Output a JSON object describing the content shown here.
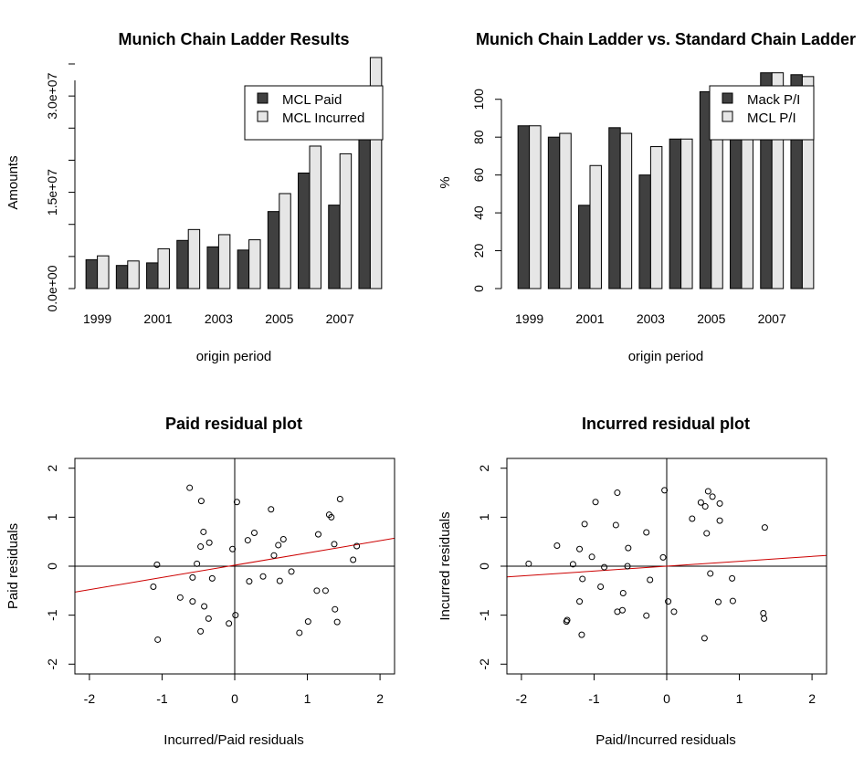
{
  "chart_data": [
    {
      "type": "bar",
      "title": "Munich Chain Ladder Results",
      "xlabel": "origin period",
      "ylabel": "Amounts",
      "categories": [
        "1999",
        "2000",
        "2001",
        "2002",
        "2003",
        "2004",
        "2005",
        "2006",
        "2007",
        "2008"
      ],
      "category_labels_shown": [
        "1999",
        "2001",
        "2003",
        "2005",
        "2007"
      ],
      "y_ticks": [
        0,
        15000000,
        30000000
      ],
      "y_tick_labels": [
        "0.0e+00",
        "1.5e+07",
        "3.0e+07"
      ],
      "ylim": [
        0,
        35000000
      ],
      "series": [
        {
          "name": "MCL Paid",
          "color": "#404040",
          "values": [
            4500000,
            3600000,
            4000000,
            7500000,
            6500000,
            6000000,
            12000000,
            18000000,
            13000000,
            31000000
          ]
        },
        {
          "name": "MCL Incurred",
          "color": "#e6e6e6",
          "values": [
            5100000,
            4300000,
            6200000,
            9200000,
            8400000,
            7600000,
            14800000,
            22200000,
            21000000,
            36000000
          ]
        }
      ],
      "legend_position": "top-right"
    },
    {
      "type": "bar",
      "title": "Munich Chain Ladder vs. Standard Chain Ladder",
      "xlabel": "origin period",
      "ylabel": "%",
      "categories": [
        "1999",
        "2000",
        "2001",
        "2002",
        "2003",
        "2004",
        "2005",
        "2006",
        "2007",
        "2008"
      ],
      "category_labels_shown": [
        "1999",
        "2001",
        "2003",
        "2005",
        "2007"
      ],
      "y_ticks": [
        0,
        20,
        40,
        60,
        80,
        100
      ],
      "ylim": [
        0,
        110
      ],
      "series": [
        {
          "name": "Mack P/I",
          "color": "#404040",
          "values": [
            86,
            80,
            44,
            85,
            60,
            79,
            104,
            107,
            114,
            113
          ]
        },
        {
          "name": "MCL P/I",
          "color": "#e6e6e6",
          "values": [
            86,
            82,
            65,
            82,
            75,
            79,
            104,
            107,
            114,
            112
          ]
        }
      ],
      "legend_position": "top-right"
    },
    {
      "type": "scatter",
      "title": "Paid residual plot",
      "xlabel": "Incurred/Paid residuals",
      "ylabel": "Paid residuals",
      "xlim": [
        -2.2,
        2.2
      ],
      "ylim": [
        -2.2,
        2.2
      ],
      "x_ticks": [
        -2,
        -1,
        0,
        1,
        2
      ],
      "y_ticks": [
        -2,
        -1,
        0,
        1,
        2
      ],
      "points": [
        [
          -0.62,
          1.6
        ],
        [
          -0.46,
          1.33
        ],
        [
          0.03,
          1.31
        ],
        [
          0.5,
          1.16
        ],
        [
          1.45,
          1.37
        ],
        [
          1.3,
          1.05
        ],
        [
          1.33,
          1.0
        ],
        [
          -0.43,
          0.7
        ],
        [
          0.27,
          0.68
        ],
        [
          0.18,
          0.53
        ],
        [
          0.67,
          0.55
        ],
        [
          1.15,
          0.65
        ],
        [
          1.68,
          0.41
        ],
        [
          -0.35,
          0.48
        ],
        [
          -0.47,
          0.4
        ],
        [
          0.6,
          0.43
        ],
        [
          -0.03,
          0.35
        ],
        [
          0.54,
          0.22
        ],
        [
          1.37,
          0.45
        ],
        [
          1.63,
          0.13
        ],
        [
          -0.52,
          0.05
        ],
        [
          -1.07,
          0.03
        ],
        [
          0.78,
          -0.11
        ],
        [
          -0.58,
          -0.23
        ],
        [
          -0.31,
          -0.25
        ],
        [
          0.39,
          -0.21
        ],
        [
          0.2,
          -0.31
        ],
        [
          0.62,
          -0.3
        ],
        [
          -1.12,
          -0.42
        ],
        [
          1.13,
          -0.5
        ],
        [
          1.25,
          -0.5
        ],
        [
          -0.75,
          -0.64
        ],
        [
          -0.58,
          -0.72
        ],
        [
          -0.42,
          -0.82
        ],
        [
          1.38,
          -0.88
        ],
        [
          0.01,
          -1.0
        ],
        [
          -0.36,
          -1.07
        ],
        [
          1.01,
          -1.13
        ],
        [
          1.41,
          -1.14
        ],
        [
          -0.08,
          -1.17
        ],
        [
          -0.47,
          -1.33
        ],
        [
          0.89,
          -1.36
        ],
        [
          -1.06,
          -1.5
        ]
      ],
      "regression_line": {
        "intercept": 0.02,
        "slope": 0.25,
        "color": "#cc0000"
      }
    },
    {
      "type": "scatter",
      "title": "Incurred residual plot",
      "xlabel": "Paid/Incurred residuals",
      "ylabel": "Incurred residuals",
      "xlim": [
        -2.2,
        2.2
      ],
      "ylim": [
        -2.2,
        2.2
      ],
      "x_ticks": [
        -2,
        -1,
        0,
        1,
        2
      ],
      "y_ticks": [
        -2,
        -1,
        0,
        1,
        2
      ],
      "points": [
        [
          -0.03,
          1.55
        ],
        [
          0.57,
          1.53
        ],
        [
          0.63,
          1.42
        ],
        [
          0.47,
          1.3
        ],
        [
          0.53,
          1.22
        ],
        [
          0.73,
          1.28
        ],
        [
          -0.68,
          1.5
        ],
        [
          -0.98,
          1.31
        ],
        [
          0.35,
          0.97
        ],
        [
          0.73,
          0.93
        ],
        [
          -1.13,
          0.86
        ],
        [
          -0.7,
          0.84
        ],
        [
          1.35,
          0.79
        ],
        [
          -0.28,
          0.69
        ],
        [
          0.55,
          0.67
        ],
        [
          -1.51,
          0.42
        ],
        [
          -1.2,
          0.35
        ],
        [
          -0.53,
          0.37
        ],
        [
          -1.03,
          0.19
        ],
        [
          -0.05,
          0.18
        ],
        [
          -1.9,
          0.05
        ],
        [
          -1.29,
          0.04
        ],
        [
          -0.86,
          -0.02
        ],
        [
          -0.54,
          0.0
        ],
        [
          0.6,
          -0.15
        ],
        [
          -1.16,
          -0.26
        ],
        [
          -0.23,
          -0.28
        ],
        [
          0.9,
          -0.25
        ],
        [
          -0.91,
          -0.42
        ],
        [
          -0.6,
          -0.55
        ],
        [
          -1.2,
          -0.72
        ],
        [
          0.02,
          -0.72
        ],
        [
          0.91,
          -0.71
        ],
        [
          0.71,
          -0.73
        ],
        [
          -0.68,
          -0.93
        ],
        [
          -0.61,
          -0.9
        ],
        [
          0.1,
          -0.93
        ],
        [
          1.33,
          -0.96
        ],
        [
          -0.28,
          -1.01
        ],
        [
          1.34,
          -1.07
        ],
        [
          -1.37,
          -1.1
        ],
        [
          -1.38,
          -1.13
        ],
        [
          -1.17,
          -1.4
        ],
        [
          0.52,
          -1.47
        ]
      ],
      "regression_line": {
        "intercept": 0.0,
        "slope": 0.1,
        "color": "#cc0000"
      }
    }
  ]
}
